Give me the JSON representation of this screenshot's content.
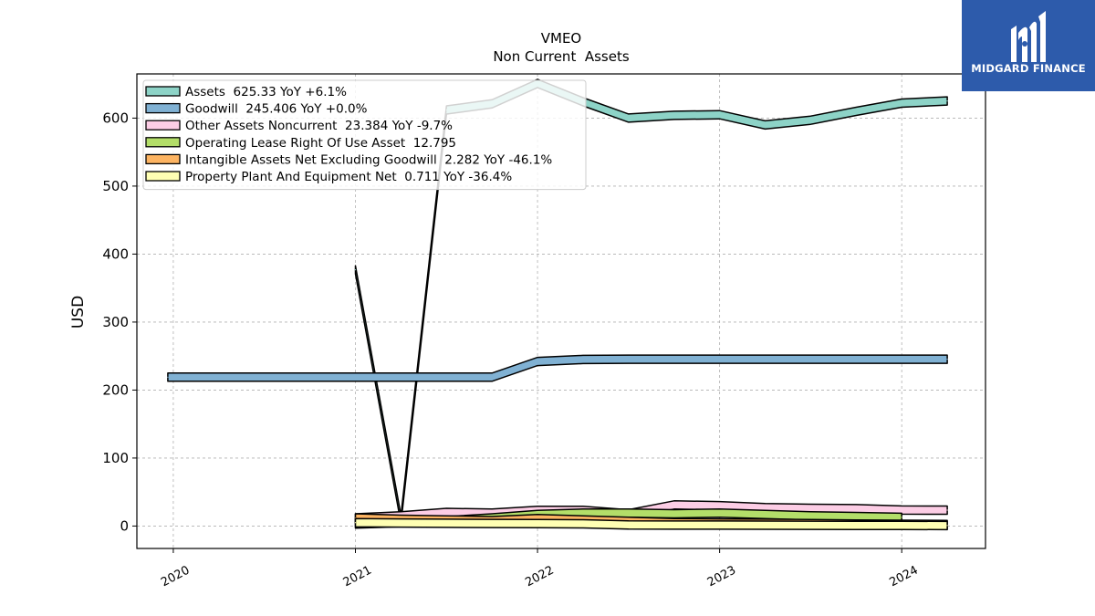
{
  "logo": {
    "text": "MIDGARD FINANCE"
  },
  "chart_data": {
    "type": "area",
    "title": "VMEO",
    "subtitle": "Non Current  Assets",
    "ylabel": "USD",
    "xlabel": "",
    "xlim": [
      2019.8,
      2024.46
    ],
    "ylim": [
      -33,
      665
    ],
    "x_ticks": [
      "2020",
      "2021",
      "2022",
      "2023",
      "2024"
    ],
    "y_ticks": [
      "0",
      "100",
      "200",
      "300",
      "400",
      "500",
      "600"
    ],
    "grid": true,
    "legend_position": "top-left",
    "series": [
      {
        "name": "Assets",
        "legend": "Assets  625.33 YoY +6.1%",
        "color": "#8dd3c7",
        "x": [
          2021.0,
          2021.25,
          2021.5,
          2021.75,
          2022.0,
          2022.25,
          2022.5,
          2022.75,
          2023.0,
          2023.25,
          2023.5,
          2023.75,
          2024.0,
          2024.25
        ],
        "y": [
          377,
          10,
          612,
          621,
          651,
          624,
          600,
          604,
          605,
          590,
          597,
          610,
          622,
          625.33
        ]
      },
      {
        "name": "Goodwill",
        "legend": "Goodwill  245.406 YoY +0.0%",
        "color": "#80b1d3",
        "x": [
          2019.97,
          2020.25,
          2020.5,
          2020.75,
          2021.0,
          2021.25,
          2021.5,
          2021.75,
          2022.0,
          2022.25,
          2022.5,
          2022.75,
          2023.0,
          2023.25,
          2023.5,
          2023.75,
          2024.0,
          2024.25
        ],
        "y": [
          219,
          219,
          219,
          219,
          219,
          219,
          219,
          219,
          242,
          245,
          245.4,
          245.4,
          245.4,
          245.4,
          245.4,
          245.4,
          245.4,
          245.406
        ]
      },
      {
        "name": "Other Assets Noncurrent",
        "legend": "Other Assets Noncurrent  23.384 YoY -9.7%",
        "color": "#fccde5",
        "x": [
          2021.0,
          2021.25,
          2021.5,
          2021.75,
          2022.0,
          2022.25,
          2022.5,
          2022.75,
          2023.0,
          2023.25,
          2023.5,
          2023.75,
          2024.0,
          2024.25
        ],
        "y": [
          12,
          15,
          20,
          19,
          23,
          23,
          18,
          31,
          30,
          27,
          26,
          25.5,
          23.5,
          23.384
        ]
      },
      {
        "name": "Operating Lease Right Of Use Asset",
        "legend": "Operating Lease Right Of Use Asset  12.795",
        "color": "#b3de69",
        "x": [
          2021.0,
          2021.25,
          2021.5,
          2021.75,
          2022.0,
          2022.25,
          2022.5,
          2022.75,
          2023.0,
          2023.25,
          2023.5,
          2023.75,
          2024.0
        ],
        "y": [
          3,
          5,
          8,
          12,
          17,
          19,
          19,
          18,
          19,
          17,
          15,
          14,
          12.795
        ]
      },
      {
        "name": "Intangible Assets Net Excluding Goodwill",
        "legend": "Intangible Assets Net Excluding Goodwill  2.282 YoY -46.1%",
        "color": "#fdb462",
        "x": [
          2021.0,
          2021.25,
          2021.5,
          2021.75,
          2022.0,
          2022.25,
          2022.5,
          2022.75,
          2023.0,
          2023.25,
          2023.5,
          2023.75,
          2024.0,
          2024.25
        ],
        "y": [
          12,
          10,
          9,
          8,
          11,
          9,
          7,
          5,
          4.5,
          4,
          3.5,
          3,
          2.6,
          2.282
        ]
      },
      {
        "name": "Property Plant And Equipment Net",
        "legend": "Property Plant And Equipment Net  0.711 YoY -36.4%",
        "color": "#ffffb3",
        "x": [
          2021.0,
          2021.25,
          2021.5,
          2021.75,
          2022.0,
          2022.25,
          2022.5,
          2022.75,
          2023.0,
          2023.25,
          2023.5,
          2023.75,
          2024.0,
          2024.25
        ],
        "y": [
          5,
          4.5,
          4,
          3.8,
          3.5,
          3.2,
          1.5,
          1.4,
          1.3,
          1.2,
          1.1,
          1.0,
          0.9,
          0.711
        ]
      }
    ]
  }
}
